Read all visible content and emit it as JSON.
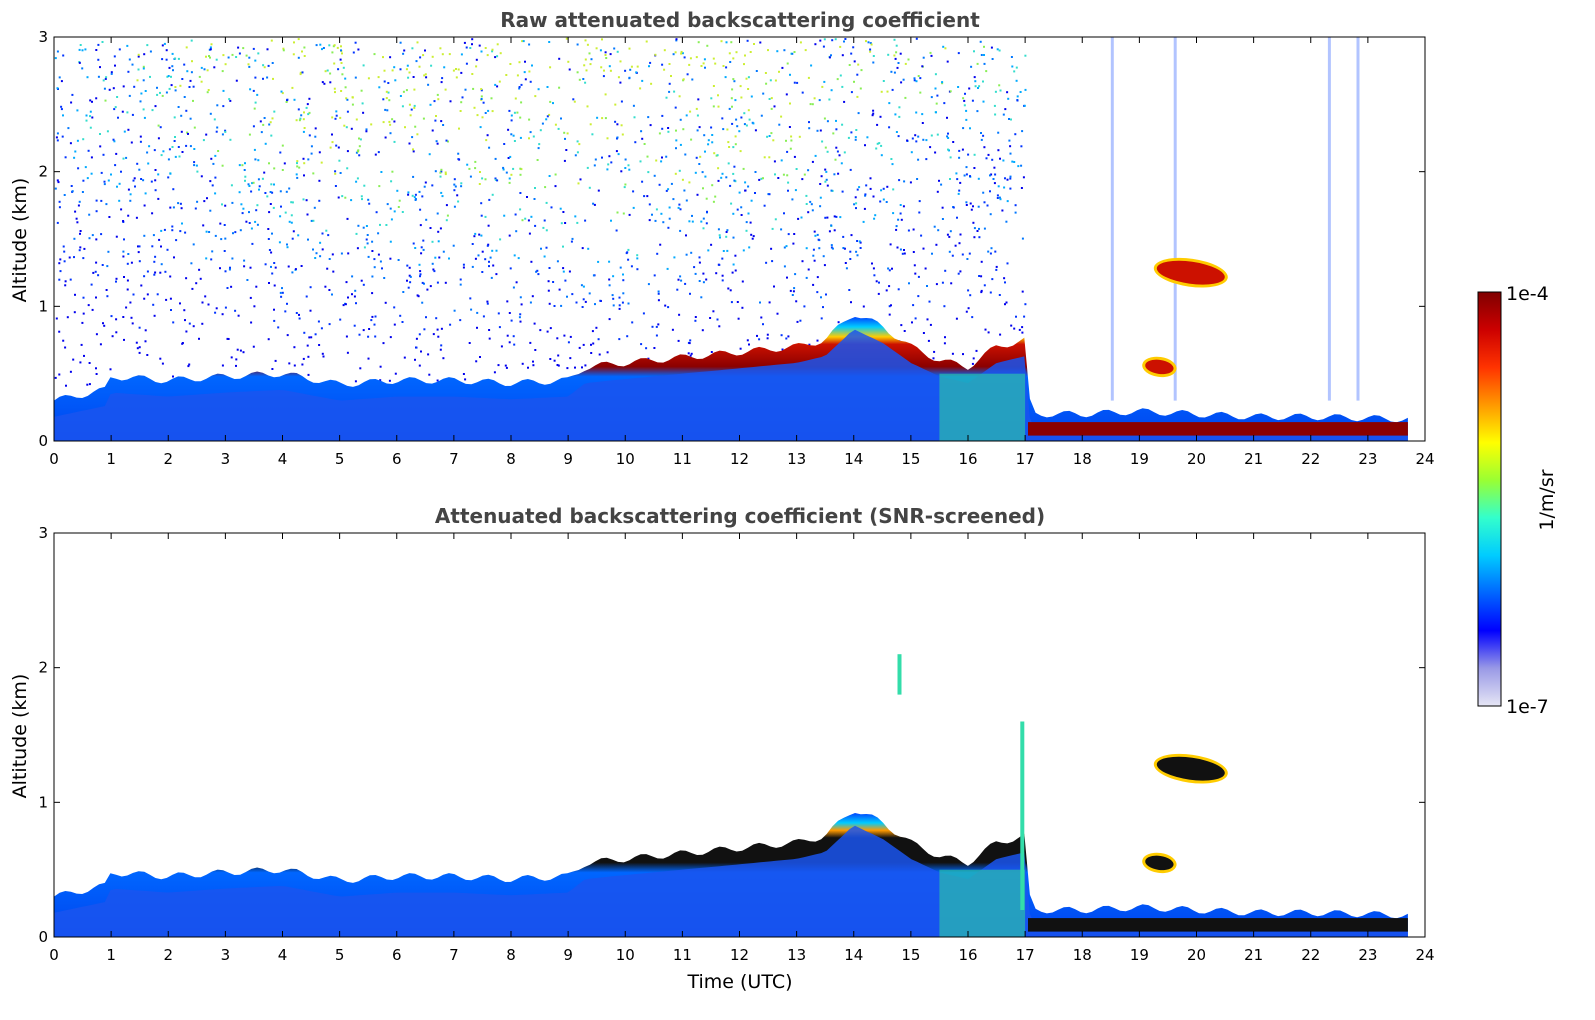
{
  "chart_data": [
    {
      "type": "heatmap",
      "title": "Raw attenuated backscattering coefficient",
      "xlabel": "",
      "ylabel": "Altitude (km)",
      "xlim": [
        0,
        24
      ],
      "ylim": [
        0,
        3
      ],
      "xticks": [
        0,
        1,
        2,
        3,
        4,
        5,
        6,
        7,
        8,
        9,
        10,
        11,
        12,
        13,
        14,
        15,
        16,
        17,
        18,
        19,
        20,
        21,
        22,
        23,
        24
      ],
      "yticks": [
        0,
        1,
        2,
        3
      ],
      "data_end_hour": 23.7,
      "layer_top_km": {
        "time": [
          0,
          0.9,
          1,
          2,
          3,
          4,
          5,
          6,
          7,
          8,
          9,
          9.3,
          10,
          11,
          12,
          13,
          13.5,
          14,
          14.5,
          15,
          15.5,
          16,
          16.5,
          17,
          17.1,
          18,
          19,
          20,
          21,
          22,
          23,
          23.7
        ],
        "altitude": [
          0.3,
          0.38,
          0.48,
          0.45,
          0.48,
          0.5,
          0.42,
          0.45,
          0.45,
          0.43,
          0.45,
          0.55,
          0.58,
          0.62,
          0.66,
          0.7,
          0.75,
          0.95,
          0.85,
          0.7,
          0.6,
          0.55,
          0.7,
          0.75,
          0.2,
          0.2,
          0.22,
          0.2,
          0.18,
          0.18,
          0.17,
          0.16
        ]
      },
      "elevated_layers": [
        {
          "time_start": 19.3,
          "time_end": 20.5,
          "altitude_center_km": 1.25
        },
        {
          "time_start": 19.1,
          "time_end": 19.6,
          "altitude_center_km": 0.55
        }
      ],
      "noise_region": {
        "time_start": 0,
        "time_end": 17,
        "altitude_range_km": [
          0.4,
          3
        ]
      }
    },
    {
      "type": "heatmap",
      "title": "Attenuated backscattering coefficient (SNR-screened)",
      "xlabel": "Time (UTC)",
      "ylabel": "Altitude (km)",
      "xlim": [
        0,
        24
      ],
      "ylim": [
        0,
        3
      ],
      "xticks": [
        0,
        1,
        2,
        3,
        4,
        5,
        6,
        7,
        8,
        9,
        10,
        11,
        12,
        13,
        14,
        15,
        16,
        17,
        18,
        19,
        20,
        21,
        22,
        23,
        24
      ],
      "yticks": [
        0,
        1,
        2,
        3
      ],
      "data_end_hour": 23.7,
      "layer_top_km": {
        "time": [
          0,
          0.9,
          1,
          2,
          3,
          4,
          5,
          6,
          7,
          8,
          9,
          9.3,
          10,
          11,
          12,
          13,
          13.5,
          14,
          14.5,
          15,
          15.5,
          16,
          16.5,
          17,
          17.1,
          18,
          19,
          20,
          21,
          22,
          23,
          23.7
        ],
        "altitude": [
          0.3,
          0.38,
          0.48,
          0.45,
          0.48,
          0.5,
          0.42,
          0.45,
          0.45,
          0.43,
          0.45,
          0.55,
          0.58,
          0.62,
          0.66,
          0.7,
          0.75,
          0.95,
          0.85,
          0.7,
          0.6,
          0.55,
          0.7,
          0.75,
          0.2,
          0.2,
          0.22,
          0.2,
          0.18,
          0.18,
          0.17,
          0.16
        ]
      },
      "elevated_layers": [
        {
          "time_start": 19.3,
          "time_end": 20.5,
          "altitude_center_km": 1.25
        },
        {
          "time_start": 19.1,
          "time_end": 19.6,
          "altitude_center_km": 0.55
        }
      ],
      "spikes": [
        {
          "time": 14.8,
          "altitude_range_km": [
            1.8,
            2.1
          ]
        },
        {
          "time": 16.95,
          "altitude_range_km": [
            0.2,
            1.6
          ]
        }
      ]
    }
  ],
  "colorbar": {
    "label": "1/m/sr",
    "max_label": "1e-4",
    "min_label": "1e-7",
    "colors": [
      "#e6e6f5",
      "#9999e6",
      "#0000ff",
      "#0066ff",
      "#00ccff",
      "#33ffcc",
      "#99ff33",
      "#ffff00",
      "#ff9900",
      "#ff3300",
      "#cc0000",
      "#800000"
    ]
  }
}
